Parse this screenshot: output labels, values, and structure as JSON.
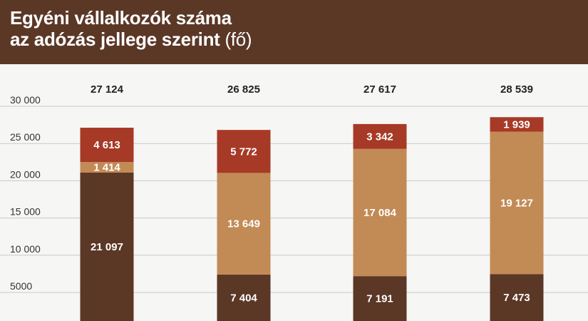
{
  "chart_data": {
    "type": "bar",
    "stacked": true,
    "title_line1": "Egyéni vállalkozók száma",
    "title_line2": "az adózás jellege szerint",
    "title_unit": "(fő)",
    "ylim": [
      0,
      30000
    ],
    "y_ticks": [
      5000,
      10000,
      15000,
      20000,
      25000,
      30000
    ],
    "y_tick_labels": [
      "5000",
      "10 000",
      "15 000",
      "20 000",
      "25 000",
      "30 000"
    ],
    "grid": true,
    "categories": [
      "",
      "",
      "",
      ""
    ],
    "totals": [
      27124,
      26825,
      27617,
      28539
    ],
    "total_labels": [
      "27 124",
      "26 825",
      "27 617",
      "28 539"
    ],
    "series": [
      {
        "color": "#5b3726",
        "values": [
          21097,
          7404,
          7191,
          7473
        ],
        "labels": [
          "21 097",
          "7 404",
          "7 191",
          "7 473"
        ]
      },
      {
        "color": "#c28a55",
        "values": [
          1414,
          13649,
          17084,
          19127
        ],
        "labels": [
          "1 414",
          "13 649",
          "17 084",
          "19 127"
        ]
      },
      {
        "color": "#a63a26",
        "values": [
          4613,
          5772,
          3342,
          1939
        ],
        "labels": [
          "4 613",
          "5 772",
          "3 342",
          "1 939"
        ]
      }
    ]
  }
}
